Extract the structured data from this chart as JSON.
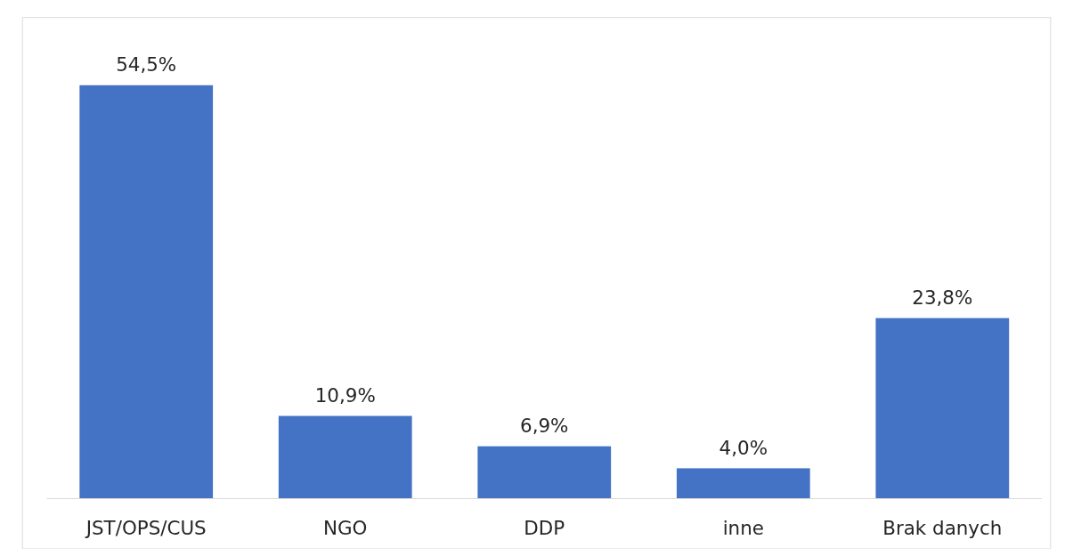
{
  "chart_data": {
    "type": "bar",
    "categories": [
      "JST/OPS/CUS",
      "NGO",
      "DDP",
      "inne",
      "Brak danych"
    ],
    "values": [
      54.5,
      10.9,
      6.9,
      4.0,
      23.8
    ],
    "color": "#4472c4",
    "value_labels": [
      "54,5%",
      "10,9%",
      "6,9%",
      "4,0%",
      "23,8%"
    ]
  }
}
